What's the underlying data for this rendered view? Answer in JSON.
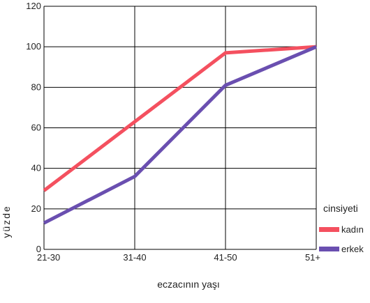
{
  "chart_data": {
    "type": "line",
    "categories": [
      "21-30",
      "31-40",
      "41-50",
      "51+"
    ],
    "series": [
      {
        "name": "kadın",
        "values": [
          29,
          63,
          97,
          100
        ],
        "color": "#f4505f"
      },
      {
        "name": "erkek",
        "values": [
          13,
          36,
          81,
          100
        ],
        "color": "#6a4fb0"
      }
    ],
    "ylim": [
      0,
      120
    ],
    "yticks": [
      0,
      20,
      40,
      60,
      80,
      100,
      120
    ],
    "ylabel": "yüzde",
    "xlabel": "eczacının yaşı",
    "legend_title": "cinsiyeti",
    "legend_position": "right",
    "grid": true
  }
}
